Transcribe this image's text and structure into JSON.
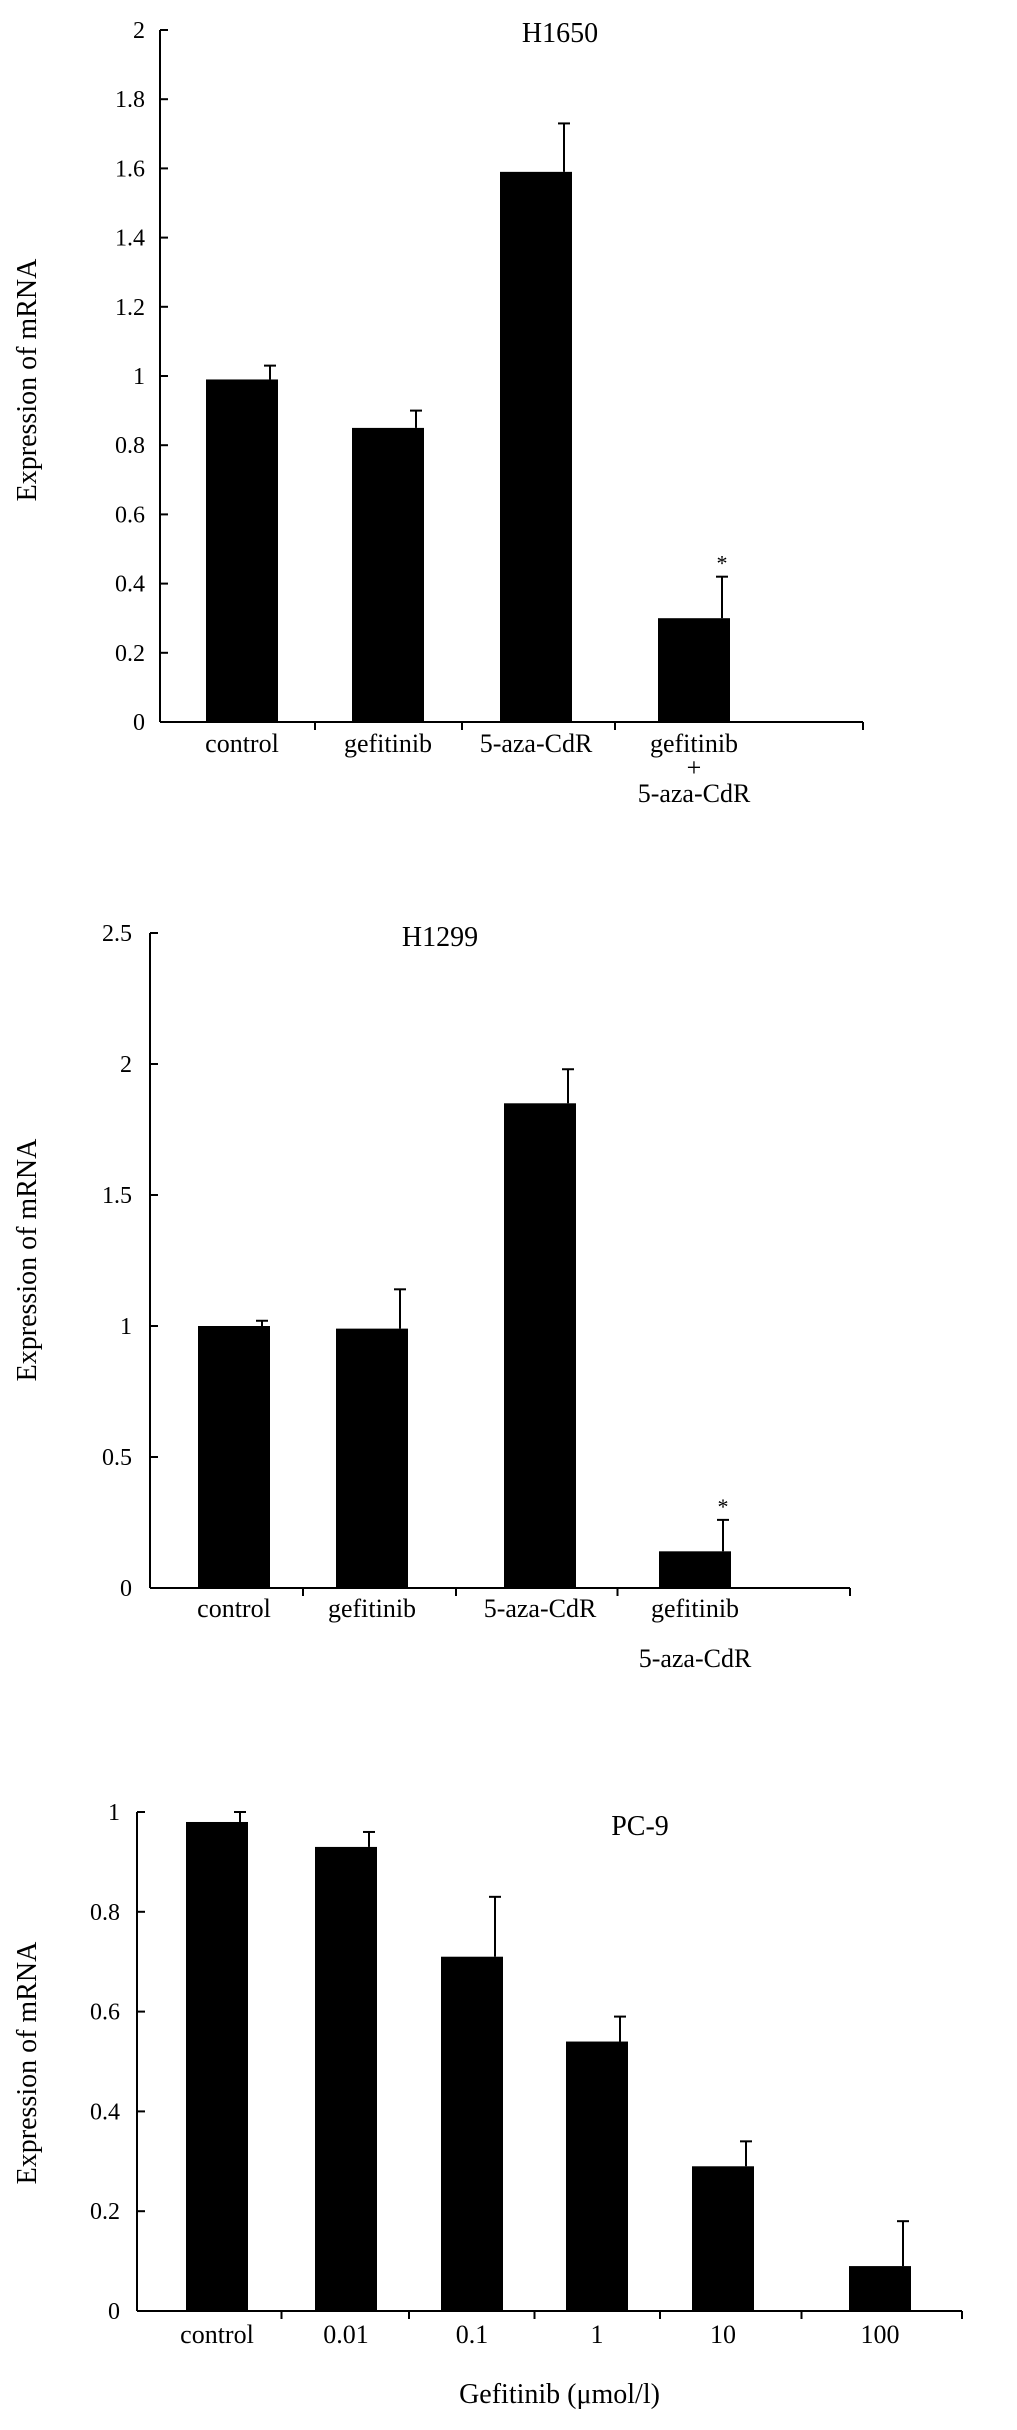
{
  "chart_data": [
    {
      "type": "bar",
      "title": "H1650",
      "xlabel": "",
      "ylabel": "Expression of mRNA",
      "ylim": [
        0,
        2
      ],
      "yticks": [
        "0",
        "0.2",
        "0.4",
        "0.6",
        "0.8",
        "1",
        "1.2",
        "1.4",
        "1.6",
        "1.8",
        "2"
      ],
      "categories": [
        {
          "line1": "control",
          "line2": ""
        },
        {
          "line1": "gefitinib",
          "line2": ""
        },
        {
          "line1": "5-aza-CdR",
          "line2": ""
        },
        {
          "line1": "gefitinib",
          "line2": "5-aza-CdR"
        }
      ],
      "combo_mark": "+",
      "values": [
        0.99,
        0.85,
        1.59,
        0.3
      ],
      "errors": [
        0.04,
        0.05,
        0.14,
        0.12
      ],
      "significance": [
        "",
        "",
        "",
        "*"
      ],
      "bar_color": "#000000",
      "grid": false
    },
    {
      "type": "bar",
      "title": "H1299",
      "xlabel": "",
      "ylabel": "Expression of mRNA",
      "ylim": [
        0,
        2.5
      ],
      "yticks": [
        "0",
        "0.5",
        "1",
        "1.5",
        "2",
        "2.5"
      ],
      "categories": [
        {
          "line1": "control",
          "line2": ""
        },
        {
          "line1": "gefitinib",
          "line2": ""
        },
        {
          "line1": "5-aza-CdR",
          "line2": ""
        },
        {
          "line1": "gefitinib",
          "line2": "5-aza-CdR"
        }
      ],
      "combo_mark": "",
      "values": [
        1.0,
        0.99,
        1.85,
        0.14
      ],
      "errors": [
        0.02,
        0.15,
        0.13,
        0.12
      ],
      "significance": [
        "",
        "",
        "",
        "*"
      ],
      "bar_color": "#000000",
      "grid": false
    },
    {
      "type": "bar",
      "title": "PC-9",
      "xlabel": "Gefitinib (μmol/l)",
      "ylabel": "Expression of mRNA",
      "ylim": [
        0,
        1
      ],
      "yticks": [
        "0",
        "0.2",
        "0.4",
        "0.6",
        "0.8",
        "1"
      ],
      "categories": [
        {
          "line1": "control",
          "line2": ""
        },
        {
          "line1": "0.01",
          "line2": ""
        },
        {
          "line1": "0.1",
          "line2": ""
        },
        {
          "line1": "1",
          "line2": ""
        },
        {
          "line1": "10",
          "line2": ""
        },
        {
          "line1": "100",
          "line2": ""
        }
      ],
      "combo_mark": "",
      "values": [
        0.98,
        0.93,
        0.71,
        0.54,
        0.29,
        0.09
      ],
      "errors": [
        0.02,
        0.03,
        0.12,
        0.05,
        0.05,
        0.09
      ],
      "significance": [
        "",
        "",
        "",
        "",
        "",
        ""
      ],
      "bar_color": "#000000",
      "grid": false
    }
  ]
}
